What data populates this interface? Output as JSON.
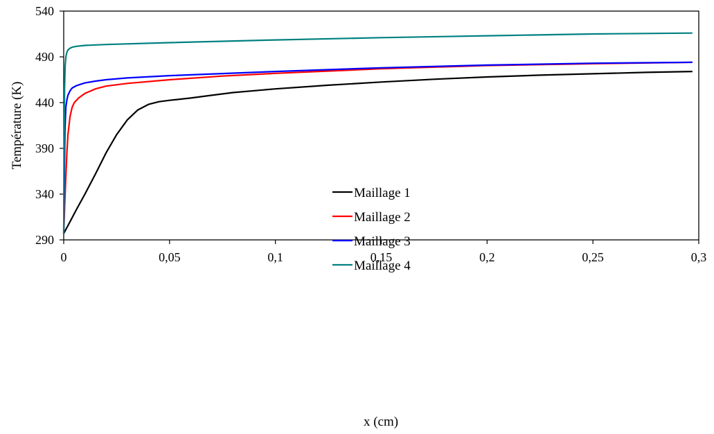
{
  "chart_data": {
    "type": "line",
    "title": "",
    "xlabel": "x (cm)",
    "ylabel": "Température (K)",
    "xlim": [
      0,
      0.3
    ],
    "ylim": [
      290,
      540
    ],
    "xticks": [
      0,
      0.05,
      0.1,
      0.15,
      0.2,
      0.25,
      0.3
    ],
    "xtick_labels": [
      "0",
      "0,05",
      "0,1",
      "0,15",
      "0,2",
      "0,25",
      "0,3"
    ],
    "yticks": [
      290,
      340,
      390,
      440,
      490,
      540
    ],
    "ytick_labels": [
      "290",
      "340",
      "390",
      "440",
      "490",
      "540"
    ],
    "grid": false,
    "legend_position": "center",
    "series": [
      {
        "name": "Maillage 1",
        "color": "#000000",
        "x": [
          0,
          0.003,
          0.006,
          0.01,
          0.015,
          0.02,
          0.025,
          0.03,
          0.035,
          0.04,
          0.045,
          0.05,
          0.06,
          0.07,
          0.08,
          0.1,
          0.125,
          0.15,
          0.175,
          0.2,
          0.225,
          0.25,
          0.275,
          0.297
        ],
        "y": [
          297,
          310,
          323,
          340,
          362,
          385,
          405,
          421,
          432,
          438,
          441,
          442.5,
          445,
          448,
          451,
          455,
          459,
          462.5,
          465.5,
          468,
          470,
          471.5,
          473,
          474
        ]
      },
      {
        "name": "Maillage 2",
        "color": "#ff0000",
        "x": [
          0,
          0.0005,
          0.001,
          0.0015,
          0.002,
          0.003,
          0.004,
          0.005,
          0.007,
          0.01,
          0.015,
          0.02,
          0.03,
          0.05,
          0.075,
          0.1,
          0.15,
          0.2,
          0.25,
          0.297
        ],
        "y": [
          297,
          330,
          360,
          385,
          405,
          425,
          435,
          440,
          445,
          450,
          455,
          458,
          461,
          465,
          469,
          472,
          477,
          480.5,
          482.5,
          484
        ]
      },
      {
        "name": "Maillage 3",
        "color": "#0000ff",
        "x": [
          0,
          0.0003,
          0.0006,
          0.001,
          0.0015,
          0.002,
          0.003,
          0.004,
          0.006,
          0.008,
          0.01,
          0.015,
          0.02,
          0.03,
          0.05,
          0.1,
          0.15,
          0.2,
          0.25,
          0.297
        ],
        "y": [
          297,
          360,
          410,
          435,
          443,
          448,
          453,
          456,
          458.5,
          460,
          461.5,
          463.5,
          465,
          467,
          469.5,
          474,
          478,
          481,
          483,
          484
        ]
      },
      {
        "name": "Maillage 4",
        "color": "#008080",
        "x": [
          0,
          0.0002,
          0.0004,
          0.0007,
          0.001,
          0.0015,
          0.002,
          0.003,
          0.004,
          0.006,
          0.01,
          0.02,
          0.05,
          0.1,
          0.15,
          0.2,
          0.25,
          0.297
        ],
        "y": [
          297,
          390,
          455,
          480,
          490,
          495,
          497.5,
          499.5,
          500.5,
          501.5,
          502.5,
          503.5,
          505.5,
          508.5,
          511,
          513,
          515,
          516
        ]
      }
    ]
  }
}
